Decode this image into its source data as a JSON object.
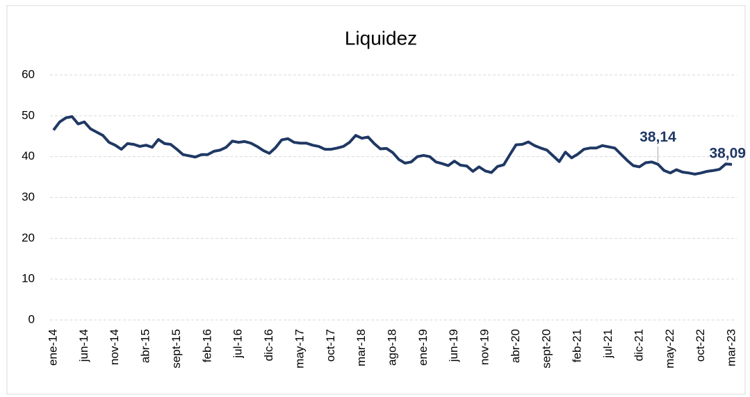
{
  "chart_data": {
    "type": "line",
    "title": "Liquidez",
    "categories": [
      "ene-14",
      null,
      null,
      null,
      null,
      "jun-14",
      null,
      null,
      null,
      null,
      "nov-14",
      null,
      null,
      null,
      null,
      "abr-15",
      null,
      null,
      null,
      null,
      "sept-15",
      null,
      null,
      null,
      null,
      "feb-16",
      null,
      null,
      null,
      null,
      "jul-16",
      null,
      null,
      null,
      null,
      "dic-16",
      null,
      null,
      null,
      null,
      "may-17",
      null,
      null,
      null,
      null,
      "oct-17",
      null,
      null,
      null,
      null,
      "mar-18",
      null,
      null,
      null,
      null,
      "ago-18",
      null,
      null,
      null,
      null,
      "ene-19",
      null,
      null,
      null,
      null,
      "jun-19",
      null,
      null,
      null,
      null,
      "nov-19",
      null,
      null,
      null,
      null,
      "abr-20",
      null,
      null,
      null,
      null,
      "sept-20",
      null,
      null,
      null,
      null,
      "feb-21",
      null,
      null,
      null,
      null,
      "jul-21",
      null,
      null,
      null,
      null,
      "dic-21",
      null,
      null,
      null,
      null,
      "may-22",
      null,
      null,
      null,
      null,
      "oct-22",
      null,
      null,
      null,
      null,
      "mar-23"
    ],
    "values": [
      46.5,
      48.5,
      49.5,
      49.8,
      48,
      48.5,
      46.8,
      46,
      45.2,
      43.5,
      42.8,
      41.8,
      43.2,
      43,
      42.5,
      42.8,
      42.3,
      44.2,
      43.2,
      43,
      41.8,
      40.5,
      40.2,
      39.9,
      40.5,
      40.5,
      41.3,
      41.6,
      42.3,
      43.8,
      43.5,
      43.7,
      43.3,
      42.5,
      41.5,
      40.8,
      42.2,
      44.1,
      44.4,
      43.5,
      43.3,
      43.3,
      42.8,
      42.5,
      41.8,
      41.8,
      42.1,
      42.5,
      43.5,
      45.2,
      44.5,
      44.8,
      43.2,
      41.9,
      42,
      41,
      39.3,
      38.4,
      38.7,
      40,
      40.3,
      40,
      38.7,
      38.3,
      37.8,
      38.9,
      37.9,
      37.7,
      36.4,
      37.5,
      36.5,
      36.1,
      37.6,
      38,
      40.5,
      42.9,
      43,
      43.6,
      42.7,
      42.1,
      41.6,
      40.2,
      38.8,
      41.1,
      39.7,
      40.6,
      41.8,
      42.1,
      42.1,
      42.7,
      42.4,
      42.1,
      40.6,
      39.1,
      37.8,
      37.5,
      38.5,
      38.7,
      38.14,
      36.6,
      36,
      36.8,
      36.2,
      36,
      35.7,
      36,
      36.4,
      36.6,
      36.9,
      38.2,
      38.09
    ],
    "value_labels": [
      null,
      null,
      null,
      null,
      null,
      null,
      null,
      null,
      null,
      null,
      null,
      null,
      null,
      null,
      null,
      null,
      null,
      null,
      null,
      null,
      null,
      null,
      null,
      null,
      null,
      null,
      null,
      null,
      null,
      null,
      null,
      null,
      null,
      null,
      null,
      null,
      null,
      null,
      null,
      null,
      null,
      null,
      null,
      null,
      null,
      null,
      null,
      null,
      null,
      null,
      null,
      null,
      null,
      null,
      null,
      null,
      null,
      null,
      null,
      null,
      null,
      null,
      null,
      null,
      null,
      null,
      null,
      null,
      null,
      null,
      null,
      null,
      null,
      null,
      null,
      null,
      null,
      null,
      null,
      null,
      null,
      null,
      null,
      null,
      null,
      null,
      null,
      null,
      null,
      null,
      null,
      null,
      null,
      null,
      null,
      null,
      null,
      null,
      "38,14",
      null,
      null,
      null,
      null,
      null,
      null,
      null,
      null,
      null,
      null,
      null,
      "38,09"
    ],
    "color": "#1f3864",
    "ylim": [
      0,
      60
    ],
    "yticks": [
      0,
      10,
      20,
      30,
      40,
      50,
      60
    ],
    "grid": true
  }
}
